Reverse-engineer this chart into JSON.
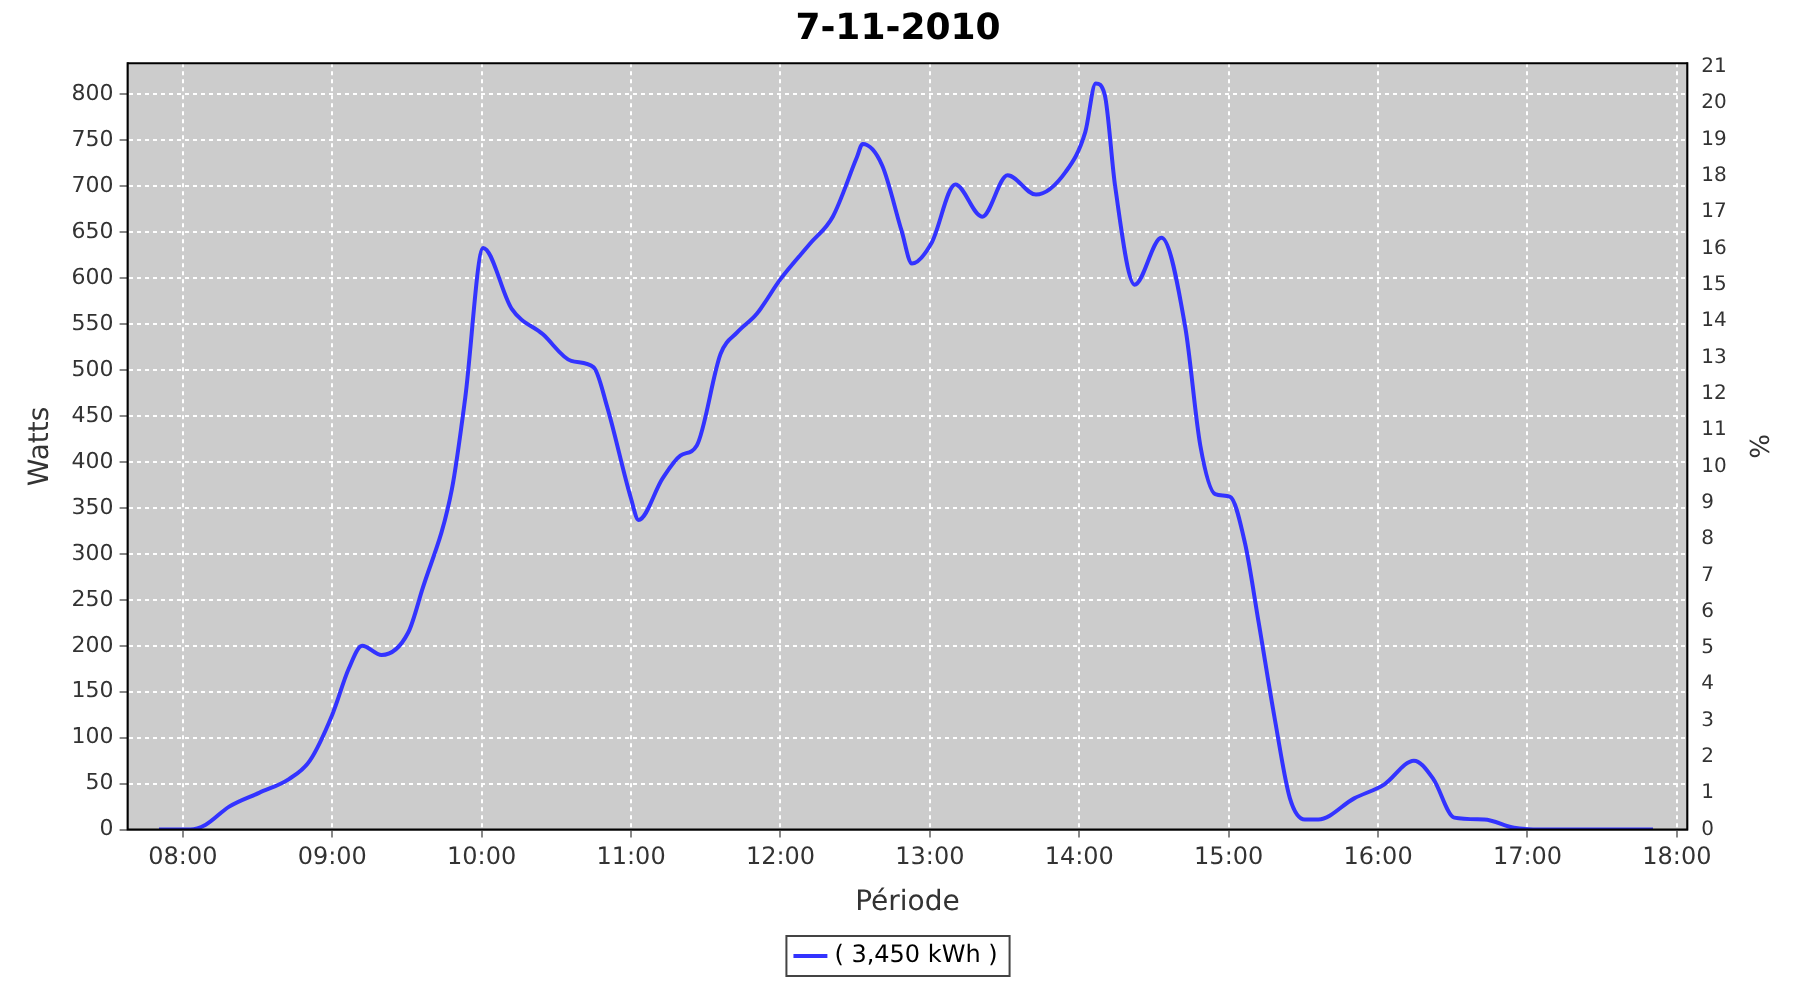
{
  "chart_data": {
    "type": "line",
    "title": "7-11-2010",
    "xlabel": "Période",
    "ylabel": "Watts",
    "y2label": "%",
    "x": [
      7.84,
      8.05,
      8.15,
      8.31,
      8.51,
      8.71,
      8.85,
      9.0,
      9.11,
      9.2,
      9.33,
      9.51,
      9.6,
      9.8,
      9.89,
      10.01,
      10.2,
      10.41,
      10.6,
      10.75,
      10.84,
      11.0,
      11.05,
      11.21,
      11.33,
      11.44,
      11.6,
      11.71,
      11.84,
      12.0,
      12.2,
      12.35,
      12.51,
      12.55,
      12.68,
      12.81,
      12.88,
      13.01,
      13.17,
      13.35,
      13.52,
      13.71,
      13.91,
      14.04,
      14.11,
      14.17,
      14.24,
      14.37,
      14.55,
      14.71,
      14.81,
      14.91,
      15.01,
      15.11,
      15.2,
      15.31,
      15.41,
      15.51,
      15.6,
      15.84,
      16.04,
      16.24,
      16.37,
      16.51,
      16.71,
      16.91,
      17.11,
      17.84
    ],
    "series": [
      {
        "name": "( 3,450 kWh )",
        "color": "#3333ff",
        "values": [
          0,
          0,
          5,
          25,
          40,
          55,
          75,
          125,
          175,
          200,
          190,
          215,
          260,
          370,
          470,
          633,
          567,
          539,
          510,
          503,
          460,
          360,
          337,
          382,
          407,
          418,
          518,
          541,
          561,
          599,
          638,
          667,
          731,
          746,
          723,
          652,
          616,
          638,
          702,
          667,
          712,
          691,
          716,
          759,
          812,
          800,
          700,
          593,
          644,
          546,
          418,
          365,
          362,
          311,
          226,
          119,
          34,
          11,
          11,
          34,
          49,
          75,
          55,
          13,
          11,
          2,
          0,
          0
        ]
      }
    ],
    "xlim": [
      7.63,
      18.07
    ],
    "xticks": [
      {
        "value": 8,
        "label": "08:00"
      },
      {
        "value": 9,
        "label": "09:00"
      },
      {
        "value": 10,
        "label": "10:00"
      },
      {
        "value": 11,
        "label": "11:00"
      },
      {
        "value": 12,
        "label": "12:00"
      },
      {
        "value": 13,
        "label": "13:00"
      },
      {
        "value": 14,
        "label": "14:00"
      },
      {
        "value": 15,
        "label": "15:00"
      },
      {
        "value": 16,
        "label": "16:00"
      },
      {
        "value": 17,
        "label": "17:00"
      },
      {
        "value": 18,
        "label": "18:00"
      }
    ],
    "ylim": [
      0,
      834
    ],
    "yticks": [
      0,
      50,
      100,
      150,
      200,
      250,
      300,
      350,
      400,
      450,
      500,
      550,
      600,
      650,
      700,
      750,
      800
    ],
    "y2lim": [
      0,
      21.1
    ],
    "y2ticks": [
      0,
      1,
      2,
      3,
      4,
      5,
      6,
      7,
      8,
      9,
      10,
      11,
      12,
      13,
      14,
      15,
      16,
      17,
      18,
      19,
      20,
      21
    ],
    "grid": true,
    "legend": "bottom",
    "marker": "none",
    "line_style": "solid"
  }
}
